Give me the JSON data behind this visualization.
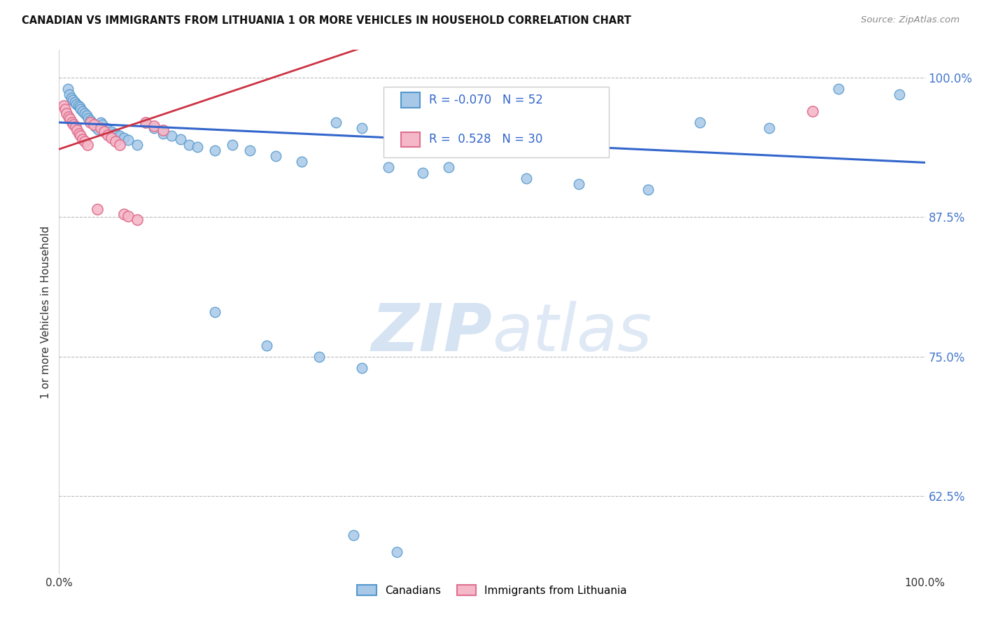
{
  "title": "CANADIAN VS IMMIGRANTS FROM LITHUANIA 1 OR MORE VEHICLES IN HOUSEHOLD CORRELATION CHART",
  "source": "Source: ZipAtlas.com",
  "ylabel": "1 or more Vehicles in Household",
  "xlim": [
    0.0,
    1.0
  ],
  "ylim": [
    0.555,
    1.025
  ],
  "yticks": [
    0.625,
    0.75,
    0.875,
    1.0
  ],
  "ytick_labels": [
    "62.5%",
    "75.0%",
    "87.5%",
    "100.0%"
  ],
  "xticks": [
    0.0,
    1.0
  ],
  "xtick_labels": [
    "0.0%",
    "100.0%"
  ],
  "r_canadian": -0.07,
  "n_canadian": 52,
  "r_lithuania": 0.528,
  "n_lithuania": 30,
  "canadian_color": "#a8c8e8",
  "canadian_edge": "#5599cc",
  "lithuania_color": "#f4b8c8",
  "lithuania_edge": "#e07090",
  "trend_canadian_color": "#3366cc",
  "trend_lithuania_color": "#cc3344",
  "background_color": "#ffffff",
  "grid_color": "#bbbbbb",
  "watermark_zip": "ZIP",
  "watermark_atlas": "atlas",
  "legend_label_canadian": "Canadians",
  "legend_label_lithuania": "Immigrants from Lithuania",
  "canadian_x": [
    0.01,
    0.012,
    0.014,
    0.016,
    0.018,
    0.02,
    0.022,
    0.024,
    0.025,
    0.027,
    0.03,
    0.032,
    0.034,
    0.036,
    0.038,
    0.04,
    0.042,
    0.045,
    0.048,
    0.05,
    0.055,
    0.06,
    0.065,
    0.07,
    0.075,
    0.08,
    0.09,
    0.1,
    0.11,
    0.12,
    0.13,
    0.14,
    0.15,
    0.16,
    0.18,
    0.2,
    0.22,
    0.25,
    0.28,
    0.32,
    0.35,
    0.38,
    0.42,
    0.46,
    0.5,
    0.54,
    0.6,
    0.68,
    0.74,
    0.82,
    0.9,
    0.97
  ],
  "canadian_y": [
    0.99,
    0.985,
    0.982,
    0.98,
    0.978,
    0.976,
    0.975,
    0.974,
    0.972,
    0.97,
    0.968,
    0.966,
    0.964,
    0.962,
    0.96,
    0.958,
    0.956,
    0.954,
    0.96,
    0.958,
    0.955,
    0.952,
    0.95,
    0.948,
    0.946,
    0.944,
    0.94,
    0.96,
    0.955,
    0.95,
    0.948,
    0.945,
    0.94,
    0.938,
    0.935,
    0.94,
    0.935,
    0.93,
    0.925,
    0.96,
    0.955,
    0.92,
    0.915,
    0.96,
    0.955,
    0.91,
    0.905,
    0.9,
    0.96,
    0.955,
    0.99,
    0.985
  ],
  "canadian_x_outliers": [
    0.18,
    0.24,
    0.3,
    0.35,
    0.45,
    0.34,
    0.39
  ],
  "canadian_y_outliers": [
    0.79,
    0.76,
    0.75,
    0.74,
    0.92,
    0.59,
    0.575
  ],
  "lithuania_x": [
    0.005,
    0.007,
    0.009,
    0.011,
    0.013,
    0.015,
    0.017,
    0.019,
    0.021,
    0.023,
    0.025,
    0.027,
    0.03,
    0.033,
    0.036,
    0.04,
    0.044,
    0.048,
    0.052,
    0.056,
    0.06,
    0.065,
    0.07,
    0.075,
    0.08,
    0.09,
    0.1,
    0.11,
    0.12,
    0.87
  ],
  "lithuania_y": [
    0.975,
    0.972,
    0.968,
    0.965,
    0.963,
    0.96,
    0.958,
    0.956,
    0.953,
    0.95,
    0.948,
    0.945,
    0.943,
    0.94,
    0.96,
    0.958,
    0.882,
    0.955,
    0.952,
    0.949,
    0.946,
    0.943,
    0.94,
    0.878,
    0.876,
    0.873,
    0.96,
    0.957,
    0.953,
    0.97
  ],
  "trend_canadian_x0": 0.0,
  "trend_canadian_y0": 0.96,
  "trend_canadian_x1": 1.0,
  "trend_canadian_y1": 0.924,
  "trend_lithuania_x0": 0.0,
  "trend_lithuania_y0": 0.936,
  "trend_lithuania_x1": 0.15,
  "trend_lithuania_y1": 0.975
}
